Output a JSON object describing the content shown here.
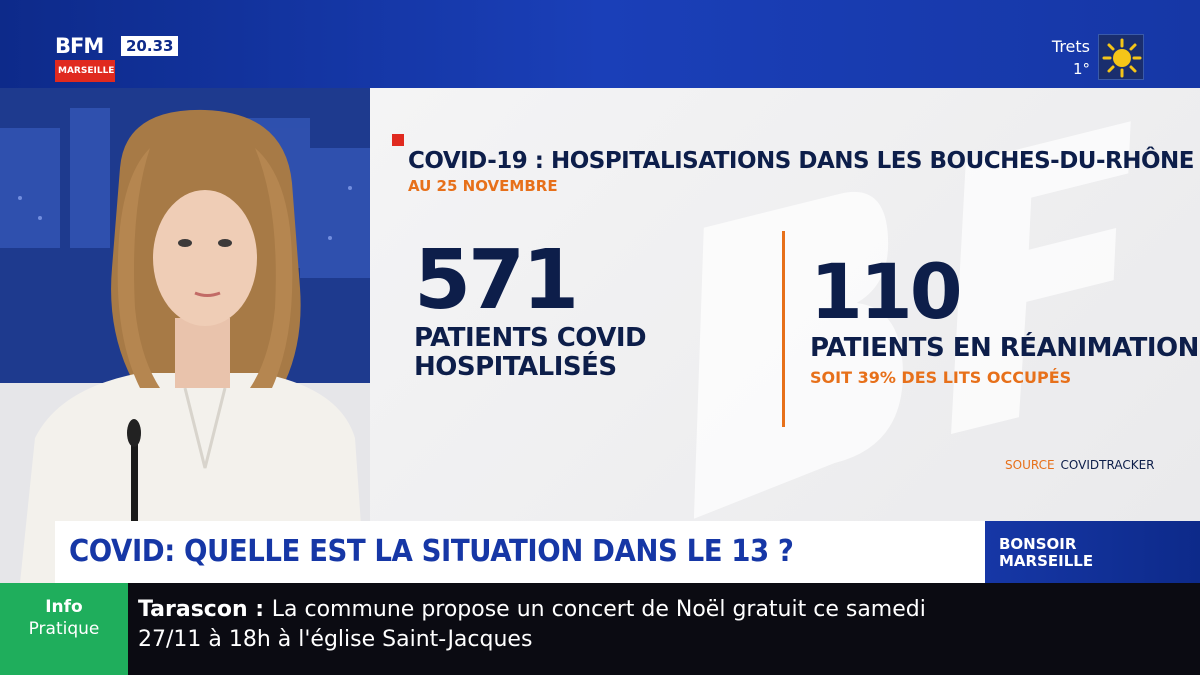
{
  "channel": {
    "name": "BFM",
    "time": "20.33",
    "city": "MARSEILLE"
  },
  "weather": {
    "city": "Trets",
    "temperature": "1°",
    "icon": "sun-icon"
  },
  "graphic": {
    "headline": "COVID-19 : HOSPITALISATIONS DANS LES BOUCHES-DU-RHÔNE",
    "date": "AU 25 NOVEMBRE",
    "stat1": {
      "value": "571",
      "label_line1": "PATIENTS COVID",
      "label_line2": "HOSPITALISÉS"
    },
    "stat2": {
      "value": "110",
      "label": "PATIENTS EN RÉANIMATION",
      "sub": "SOIT 39% DES LITS OCCUPÉS"
    },
    "source_label": "SOURCE",
    "source_value": "COVIDTRACKER"
  },
  "lower_third": {
    "title": "COVID: QUELLE EST LA SITUATION DANS LE 13 ?",
    "show_line1": "BONSOIR",
    "show_line2": "MARSEILLE"
  },
  "ticker": {
    "label_line1": "Info",
    "label_line2": "Pratique",
    "place": "Tarascon",
    "separator": " : ",
    "text_line1": "La commune propose un concert de Noël gratuit ce samedi",
    "text_line2": "27/11 à 18h à l'église Saint-Jacques"
  },
  "colors": {
    "brand_blue": "#1637a6",
    "accent_orange": "#e7701a",
    "ticker_green": "#1fae5c",
    "brand_red": "#e02a1f"
  }
}
